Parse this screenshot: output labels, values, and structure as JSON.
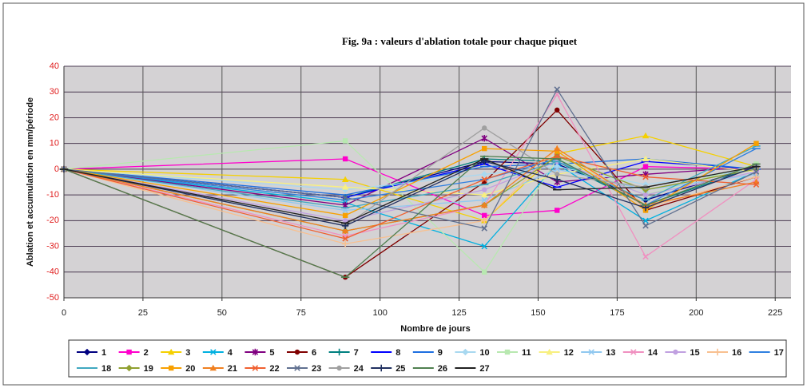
{
  "chart_data": {
    "type": "line",
    "title": "Fig. 9a : valeurs d'ablation totale pour chaque piquet",
    "x_label": "Nombre de jours",
    "y_label": "Ablation et accumulation en mm/période",
    "x": [
      0,
      89,
      133,
      156,
      184,
      219
    ],
    "xlim": [
      0,
      230
    ],
    "xticks": [
      0,
      25,
      50,
      75,
      100,
      125,
      150,
      175,
      200,
      225
    ],
    "ylim": [
      -50,
      40
    ],
    "yticks": [
      -50,
      -40,
      -30,
      -20,
      -10,
      0,
      10,
      20,
      30,
      40
    ],
    "grid": true,
    "series": [
      {
        "name": "1",
        "color": "#000080",
        "marker": "diamond",
        "values": [
          0,
          -11,
          3,
          2,
          -12,
          1
        ]
      },
      {
        "name": "2",
        "color": "#ff00cc",
        "marker": "square",
        "values": [
          0,
          4,
          -18,
          -16,
          1,
          0
        ]
      },
      {
        "name": "3",
        "color": "#f5d000",
        "marker": "triangle",
        "values": [
          0,
          -4,
          -20,
          6,
          13,
          1
        ]
      },
      {
        "name": "4",
        "color": "#00b0e0",
        "marker": "x",
        "values": [
          0,
          -13,
          -30,
          2,
          -20,
          -1
        ]
      },
      {
        "name": "5",
        "color": "#800080",
        "marker": "star",
        "values": [
          0,
          -14,
          12,
          -5,
          -2,
          1
        ]
      },
      {
        "name": "6",
        "color": "#800000",
        "marker": "circle",
        "values": [
          0,
          -42,
          -5,
          23,
          -16,
          -3
        ]
      },
      {
        "name": "7",
        "color": "#008080",
        "marker": "plus",
        "values": [
          0,
          -11,
          4,
          3,
          -14,
          1
        ]
      },
      {
        "name": "8",
        "color": "#0000ff",
        "marker": "dash",
        "values": [
          0,
          -11,
          2,
          -7,
          3,
          0
        ]
      },
      {
        "name": "9",
        "color": "#1e6fe0",
        "marker": "dash",
        "values": [
          0,
          -10,
          1,
          2,
          4,
          0
        ]
      },
      {
        "name": "10",
        "color": "#a8d8f0",
        "marker": "diamond",
        "values": [
          0,
          -8,
          -2,
          1,
          -6,
          0
        ]
      },
      {
        "name": "11",
        "color": "#b8e8b0",
        "marker": "square",
        "values": [
          0,
          11,
          -40,
          4,
          -10,
          2
        ]
      },
      {
        "name": "12",
        "color": "#f8f080",
        "marker": "triangle",
        "values": [
          0,
          -7,
          -10,
          -2,
          4,
          -1
        ]
      },
      {
        "name": "13",
        "color": "#90c8f0",
        "marker": "x",
        "values": [
          0,
          -16,
          -12,
          0,
          -8,
          -2
        ]
      },
      {
        "name": "14",
        "color": "#f090c0",
        "marker": "x",
        "values": [
          0,
          -26,
          -14,
          29,
          -34,
          -4
        ]
      },
      {
        "name": "15",
        "color": "#c0a0e0",
        "marker": "circle",
        "values": [
          0,
          -20,
          -8,
          3,
          -10,
          -1
        ]
      },
      {
        "name": "16",
        "color": "#f8c090",
        "marker": "plus",
        "values": [
          0,
          -29,
          -20,
          8,
          -15,
          -3
        ]
      },
      {
        "name": "17",
        "color": "#3080e0",
        "marker": "dash",
        "values": [
          0,
          -12,
          -4,
          4,
          -14,
          8
        ]
      },
      {
        "name": "18",
        "color": "#40a8c0",
        "marker": "dash",
        "values": [
          0,
          -15,
          -6,
          3,
          -12,
          9
        ]
      },
      {
        "name": "19",
        "color": "#90a030",
        "marker": "diamond",
        "values": [
          0,
          -24,
          -14,
          5,
          -8,
          0
        ]
      },
      {
        "name": "20",
        "color": "#f8a000",
        "marker": "square",
        "values": [
          0,
          -18,
          8,
          7,
          -16,
          10
        ]
      },
      {
        "name": "21",
        "color": "#f08020",
        "marker": "triangle",
        "values": [
          0,
          -24,
          -14,
          8,
          -14,
          -5
        ]
      },
      {
        "name": "22",
        "color": "#f06030",
        "marker": "x",
        "values": [
          0,
          -27,
          -4,
          5,
          -3,
          -6
        ]
      },
      {
        "name": "23",
        "color": "#607090",
        "marker": "x",
        "values": [
          0,
          -11,
          -23,
          31,
          -22,
          -1
        ]
      },
      {
        "name": "24",
        "color": "#a0a0a0",
        "marker": "circle",
        "values": [
          0,
          -22,
          16,
          -2,
          -7,
          1
        ]
      },
      {
        "name": "25",
        "color": "#203060",
        "marker": "plus",
        "values": [
          0,
          -22,
          3,
          -4,
          -15,
          1
        ]
      },
      {
        "name": "26",
        "color": "#508050",
        "marker": "dash",
        "values": [
          0,
          -42,
          5,
          4,
          -14,
          2
        ]
      },
      {
        "name": "27",
        "color": "#202020",
        "marker": "dash",
        "values": [
          0,
          -21,
          4,
          -8,
          -7,
          1
        ]
      }
    ]
  }
}
